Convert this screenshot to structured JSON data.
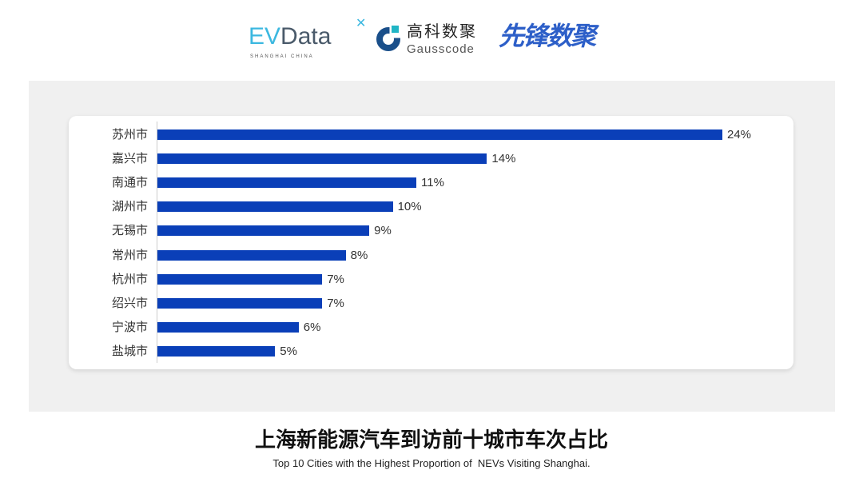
{
  "logos": {
    "evdata": {
      "text": "EVData",
      "tagline": "SHANGHAI CHINA"
    },
    "gausscode": {
      "cn": "高科数聚",
      "en": "Gausscode"
    },
    "xianfeng": {
      "text": "先锋数聚"
    }
  },
  "chart_data": {
    "type": "bar",
    "orientation": "horizontal",
    "title": "上海新能源汽车到访前十城市车次占比",
    "subtitle": "Top 10 Cities with the Highest Proportion of  NEVs Visiting Shanghai.",
    "categories": [
      "苏州市",
      "嘉兴市",
      "南通市",
      "湖州市",
      "无锡市",
      "常州市",
      "杭州市",
      "绍兴市",
      "宁波市",
      "盐城市"
    ],
    "values": [
      24,
      14,
      11,
      10,
      9,
      8,
      7,
      7,
      6,
      5
    ],
    "labels": [
      "24%",
      "14%",
      "11%",
      "10%",
      "9%",
      "8%",
      "7%",
      "7%",
      "6%",
      "5%"
    ],
    "unit": "%",
    "bar_color": "#0a3fb8",
    "grid": false
  }
}
